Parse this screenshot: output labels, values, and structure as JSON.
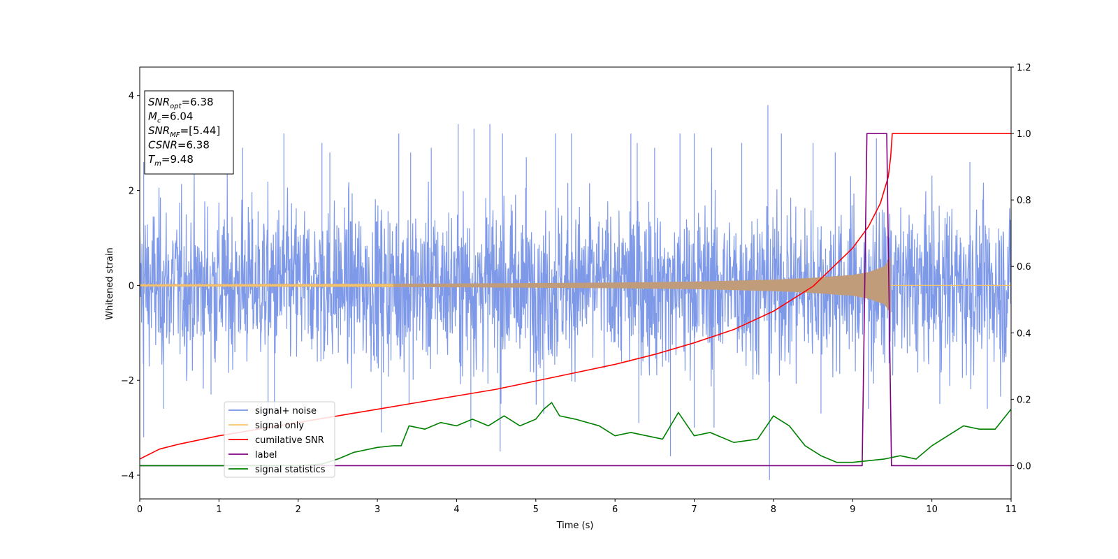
{
  "chart_data": {
    "type": "line",
    "xlabel": "Time (s)",
    "ylabel_left": "Whitened strain",
    "ylabel_right": "",
    "xlim": [
      0,
      11
    ],
    "ylim_left": [
      -4.5,
      4.6
    ],
    "ylim_right": [
      -0.1,
      1.2
    ],
    "xticks": [
      0,
      1,
      2,
      3,
      4,
      5,
      6,
      7,
      8,
      9,
      10,
      11
    ],
    "yticks_left": [
      -4,
      -2,
      0,
      2,
      4
    ],
    "yticks_left_labels": [
      "−4",
      "−2",
      "0",
      "2",
      "4"
    ],
    "yticks_right": [
      0.0,
      0.2,
      0.4,
      0.6,
      0.8,
      1.0,
      1.2
    ],
    "yticks_right_labels": [
      "0.0",
      "0.2",
      "0.4",
      "0.6",
      "0.8",
      "1.0",
      "1.2"
    ],
    "grid": false,
    "legend_position": "lower-left",
    "annotation_box": {
      "position": "top-left",
      "lines": [
        {
          "symbol": "SNR",
          "sub": "opt",
          "text": "=6.38"
        },
        {
          "symbol": "M",
          "sub": "c",
          "text": "=6.04"
        },
        {
          "symbol": "SNR",
          "sub": "MF",
          "text": "=[5.44]"
        },
        {
          "symbol": "CSNR",
          "sub": "",
          "text": "=6.38"
        },
        {
          "symbol": "T",
          "sub": "m",
          "text": "=9.48"
        }
      ]
    },
    "series": [
      {
        "name": "signal+ noise",
        "axis": "left",
        "color": "#7893e8",
        "description_kind": "noise",
        "envelope_min": [
          -3.2,
          -2.3,
          -2.9,
          -3.1,
          -3.3,
          -3.7,
          -3.0,
          -3.0,
          -4.1,
          -3.5,
          -2.6,
          -2.6
        ],
        "envelope_max": [
          2.6,
          3.2,
          3.2,
          3.2,
          3.4,
          3.3,
          3.4,
          3.2,
          3.8,
          3.2,
          2.6,
          2.6
        ],
        "spikes": [
          [
            0.05,
            2.6
          ],
          [
            1.3,
            2.9
          ],
          [
            1.82,
            3.2
          ],
          [
            2.3,
            3.0
          ],
          [
            2.4,
            2.8
          ],
          [
            3.27,
            3.2
          ],
          [
            3.42,
            2.8
          ],
          [
            3.68,
            2.9
          ],
          [
            4.02,
            3.4
          ],
          [
            4.22,
            3.3
          ],
          [
            4.42,
            3.4
          ],
          [
            4.58,
            3.2
          ],
          [
            4.88,
            2.7
          ],
          [
            5.25,
            3.2
          ],
          [
            5.45,
            3.2
          ],
          [
            6.2,
            3.2
          ],
          [
            6.28,
            3.0
          ],
          [
            6.5,
            2.9
          ],
          [
            6.82,
            3.2
          ],
          [
            7.0,
            3.2
          ],
          [
            7.22,
            2.9
          ],
          [
            7.6,
            3.0
          ],
          [
            7.93,
            3.8
          ],
          [
            8.1,
            3.2
          ],
          [
            8.5,
            3.0
          ],
          [
            8.78,
            2.8
          ],
          [
            9.3,
            3.1
          ],
          [
            10.48,
            2.6
          ],
          [
            0.05,
            -3.2
          ],
          [
            0.3,
            -2.6
          ],
          [
            0.9,
            -2.3
          ],
          [
            1.62,
            -2.9
          ],
          [
            1.7,
            -2.6
          ],
          [
            3.05,
            -3.1
          ],
          [
            3.4,
            -2.5
          ],
          [
            4.18,
            -3.0
          ],
          [
            4.55,
            -3.5
          ],
          [
            5.1,
            -2.7
          ],
          [
            6.3,
            -2.9
          ],
          [
            6.7,
            -3.6
          ],
          [
            7.0,
            -3.0
          ],
          [
            7.25,
            -3.0
          ],
          [
            7.95,
            -4.1
          ],
          [
            8.6,
            -2.7
          ],
          [
            9.2,
            -2.6
          ],
          [
            10.1,
            -2.5
          ],
          [
            10.7,
            -2.6
          ]
        ]
      },
      {
        "name": "signal only",
        "axis": "left",
        "color": "#f5c46a",
        "description_kind": "chirp",
        "amplitude_x": [
          0,
          1,
          2,
          3,
          4,
          5,
          6,
          7,
          8,
          8.5,
          9,
          9.2,
          9.4,
          9.48
        ],
        "amplitude_y": [
          0.02,
          0.025,
          0.03,
          0.035,
          0.04,
          0.05,
          0.06,
          0.08,
          0.12,
          0.16,
          0.22,
          0.28,
          0.4,
          0.6
        ]
      },
      {
        "name": "cumilative SNR",
        "axis": "right",
        "color": "#ff0000",
        "x": [
          0,
          0.25,
          0.5,
          1,
          1.5,
          2,
          2.5,
          3,
          3.5,
          4,
          4.5,
          5,
          5.5,
          6,
          6.5,
          7,
          7.5,
          8,
          8.5,
          9,
          9.2,
          9.35,
          9.45,
          9.48,
          9.5,
          11
        ],
        "y": [
          0.02,
          0.05,
          0.065,
          0.09,
          0.11,
          0.13,
          0.15,
          0.17,
          0.19,
          0.21,
          0.23,
          0.255,
          0.28,
          0.305,
          0.335,
          0.37,
          0.41,
          0.465,
          0.54,
          0.655,
          0.72,
          0.79,
          0.87,
          0.93,
          1.0,
          1.0
        ]
      },
      {
        "name": "label",
        "axis": "right",
        "color": "#800080",
        "x": [
          0,
          9.12,
          9.18,
          9.43,
          9.49,
          11
        ],
        "y": [
          0,
          0,
          1,
          1,
          0,
          0
        ]
      },
      {
        "name": "signal statistics",
        "axis": "right",
        "color": "#008000",
        "x": [
          0,
          1,
          2,
          2.3,
          2.5,
          2.7,
          3,
          3.2,
          3.3,
          3.4,
          3.6,
          3.8,
          4.0,
          4.2,
          4.4,
          4.6,
          4.8,
          5.0,
          5.1,
          5.2,
          5.3,
          5.5,
          5.8,
          6.0,
          6.2,
          6.4,
          6.6,
          6.8,
          7.0,
          7.2,
          7.5,
          7.8,
          8.0,
          8.2,
          8.4,
          8.6,
          8.8,
          9.0,
          9.2,
          9.4,
          9.6,
          9.8,
          10.0,
          10.2,
          10.4,
          10.6,
          10.8,
          11.0
        ],
        "y": [
          0.0,
          0.0,
          0.0,
          0.005,
          0.02,
          0.04,
          0.055,
          0.06,
          0.06,
          0.12,
          0.11,
          0.13,
          0.12,
          0.14,
          0.12,
          0.15,
          0.12,
          0.14,
          0.17,
          0.19,
          0.15,
          0.14,
          0.12,
          0.09,
          0.1,
          0.09,
          0.08,
          0.16,
          0.09,
          0.1,
          0.07,
          0.08,
          0.15,
          0.12,
          0.06,
          0.03,
          0.01,
          0.01,
          0.015,
          0.02,
          0.03,
          0.02,
          0.06,
          0.09,
          0.12,
          0.11,
          0.11,
          0.17
        ]
      }
    ]
  }
}
